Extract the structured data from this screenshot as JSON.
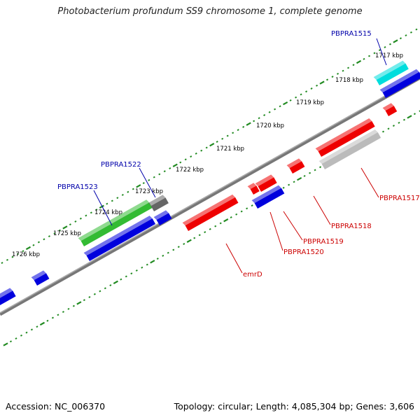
{
  "title": "Photobacterium profundum SS9 chromosome 1, complete genome",
  "footer": {
    "accession": "Accession: NC_006370",
    "summary": "Topology: circular; Length: 4,085,304 bp; Genes: 3,606"
  },
  "colors": {
    "backbone": "#777777",
    "ticks": "#228b22",
    "forward_label": "#0000aa",
    "reverse_label": "#cc0000",
    "red": "#ee0000",
    "blue": "#0000dd",
    "green": "#33bb33",
    "cyan": "#00dddd",
    "gray": "#666666",
    "lightgray": "#bbbbbb"
  },
  "scale_labels": [
    "1726 kbp",
    "1725 kbp",
    "1724 kbp",
    "1723 kbp",
    "1722 kbp",
    "1721 kbp",
    "1720 kbp",
    "1719 kbp",
    "1718 kbp",
    "1717 kbp"
  ],
  "gene_labels": {
    "PBPRA1515": "PBPRA1515",
    "PBPRA1522": "PBPRA1522",
    "PBPRA1523": "PBPRA1523",
    "PBPRA1517": "PBPRA1517",
    "PBPRA1518": "PBPRA1518",
    "PBPRA1519": "PBPRA1519",
    "PBPRA1520": "PBPRA1520",
    "emrD": "emrD"
  }
}
